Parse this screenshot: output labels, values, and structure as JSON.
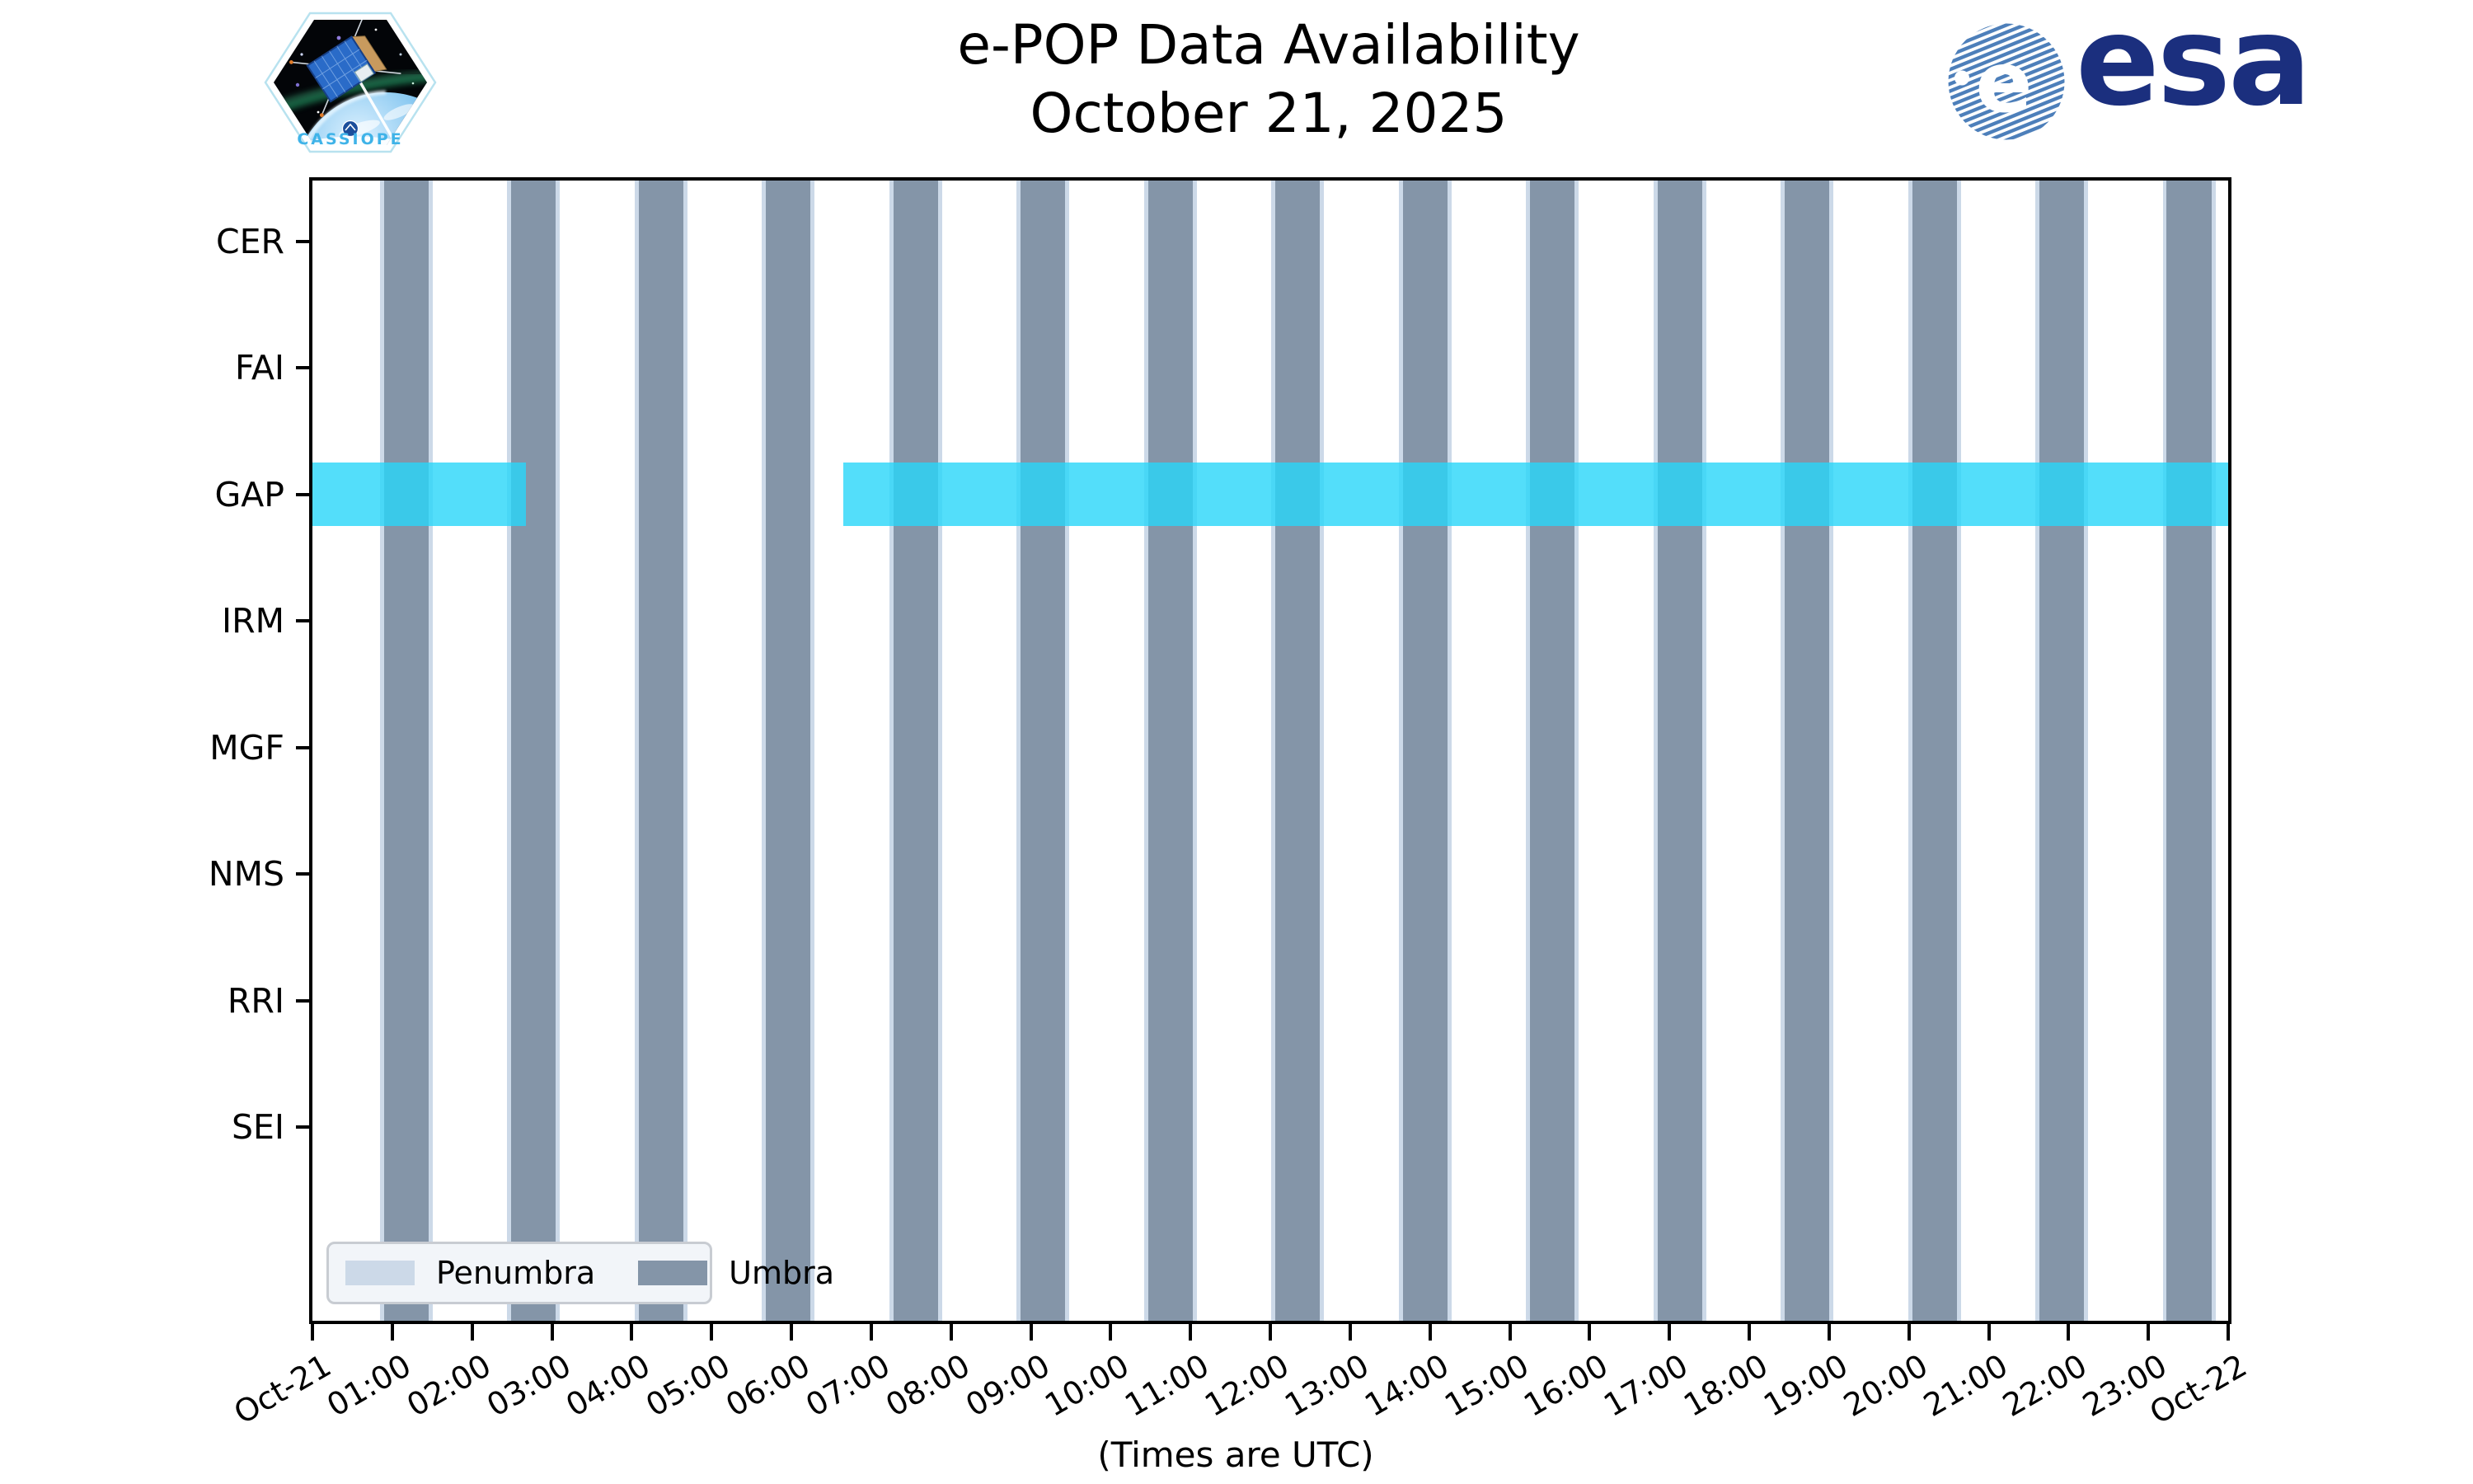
{
  "header": {
    "title_line1": "e-POP Data Availability",
    "title_line2": "October 21, 2025"
  },
  "axis": {
    "x_label": "(Times are UTC)",
    "y_categories": [
      "CER",
      "FAI",
      "GAP",
      "IRM",
      "MGF",
      "NMS",
      "RRI",
      "SEI"
    ],
    "x_tick_labels": [
      "Oct-21",
      "01:00",
      "02:00",
      "03:00",
      "04:00",
      "05:00",
      "06:00",
      "07:00",
      "08:00",
      "09:00",
      "10:00",
      "11:00",
      "12:00",
      "13:00",
      "14:00",
      "15:00",
      "16:00",
      "17:00",
      "18:00",
      "19:00",
      "20:00",
      "21:00",
      "22:00",
      "23:00",
      "Oct-22"
    ]
  },
  "legend": {
    "penumbra_label": "Penumbra",
    "umbra_label": "Umbra"
  },
  "logos": {
    "cassiope_label": "CASSIOPE",
    "esa_wordmark": "esa",
    "esa_e": "e"
  },
  "chart_data": {
    "type": "availability-timeline",
    "title": "e-POP Data Availability — October 21, 2025",
    "x_axis": {
      "start": "Oct-21 00:00 UTC",
      "end": "Oct-22 00:00 UTC",
      "range_hours": [
        0,
        24
      ],
      "tick_interval_hours": 1
    },
    "y_axis": {
      "instruments": [
        "CER",
        "FAI",
        "GAP",
        "IRM",
        "MGF",
        "NMS",
        "RRI",
        "SEI"
      ]
    },
    "umbra_intervals_hours": [
      [
        0.9,
        1.46
      ],
      [
        2.49,
        3.05
      ],
      [
        4.09,
        4.65
      ],
      [
        5.68,
        6.24
      ],
      [
        7.28,
        7.84
      ],
      [
        8.87,
        9.43
      ],
      [
        10.47,
        11.03
      ],
      [
        12.06,
        12.62
      ],
      [
        13.66,
        14.22
      ],
      [
        15.25,
        15.81
      ],
      [
        16.85,
        17.41
      ],
      [
        18.44,
        19.0
      ],
      [
        20.04,
        20.6
      ],
      [
        21.63,
        22.19
      ],
      [
        23.23,
        23.79
      ]
    ],
    "penumbra_margin_hours": 0.05,
    "availability_segments": [
      {
        "instrument": "GAP",
        "start_hour": 0.0,
        "end_hour": 2.67
      },
      {
        "instrument": "GAP",
        "start_hour": 6.65,
        "end_hour": 24.0
      }
    ],
    "colors": {
      "umbra": "#8495a8",
      "penumbra": "#ccd9e8",
      "availability_band": "rgba(40,214,249,0.8)",
      "frame": "#000000",
      "legend_bg": "#f2f5f9",
      "esa_navy": "#1b2f7e",
      "esa_stripe_blue": "#4d7fba"
    },
    "legend_position": "lower left",
    "grid": false
  }
}
